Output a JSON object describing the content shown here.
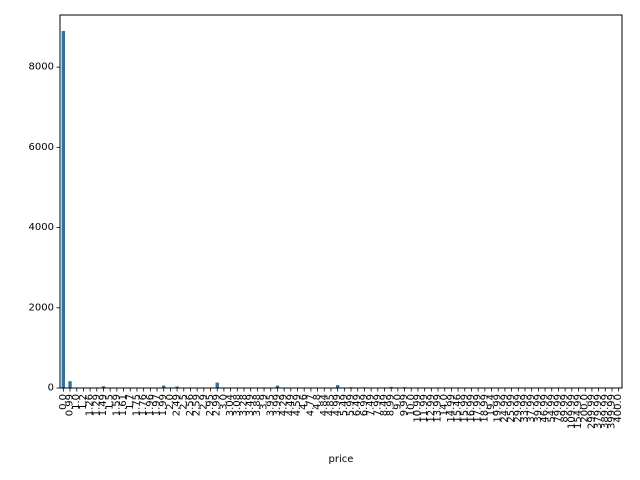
{
  "chart_data": {
    "type": "bar",
    "xlabel": "price",
    "ylabel": "",
    "title": "",
    "ylim": [
      0,
      9300
    ],
    "yticks": [
      0,
      2000,
      4000,
      6000,
      8000
    ],
    "grid": false,
    "bar_color": "#1f77b4",
    "categories": [
      "0.0",
      "0.99",
      "1.0",
      "1.2",
      "1.26",
      "1.29",
      "1.49",
      "1.5",
      "1.59",
      "1.61",
      "1.7",
      "1.75",
      "1.76",
      "1.96",
      "1.97",
      "1.99",
      "2.0",
      "2.49",
      "2.5",
      "2.56",
      "2.59",
      "2.9",
      "2.95",
      "2.99",
      "3.0",
      "3.04",
      "3.08",
      "3.28",
      "3.49",
      "3.88",
      "3.9",
      "3.95",
      "3.99",
      "4.29",
      "4.49",
      "4.59",
      "4.6",
      "4.77",
      "4.8",
      "4.84",
      "4.85",
      "4.99",
      "5.49",
      "5.99",
      "6.49",
      "6.99",
      "7.49",
      "7.99",
      "8.49",
      "8.99",
      "9.0",
      "9.99",
      "10.0",
      "10.99",
      "11.99",
      "12.99",
      "13.99",
      "14.0",
      "14.99",
      "15.46",
      "15.99",
      "16.99",
      "17.99",
      "18.99",
      "19.4",
      "19.99",
      "24.99",
      "25.99",
      "29.99",
      "33.99",
      "37.99",
      "39.99",
      "46.99",
      "54.99",
      "79.99",
      "89.99",
      "109.99",
      "154.99",
      "200.0",
      "299.99",
      "379.99",
      "389.99",
      "399.99",
      "400.0"
    ],
    "values": [
      8900,
      170,
      2,
      2,
      2,
      2,
      45,
      2,
      8,
      2,
      2,
      2,
      2,
      2,
      2,
      60,
      10,
      38,
      10,
      2,
      2,
      2,
      2,
      135,
      12,
      2,
      2,
      2,
      2,
      2,
      2,
      2,
      60,
      2,
      8,
      2,
      2,
      2,
      2,
      2,
      2,
      72,
      10,
      20,
      4,
      15,
      3,
      6,
      2,
      28,
      2,
      20,
      3,
      3,
      2,
      3,
      2,
      2,
      4,
      2,
      3,
      2,
      2,
      2,
      2,
      3,
      3,
      2,
      3,
      2,
      2,
      2,
      2,
      2,
      2,
      2,
      2,
      2,
      2,
      2,
      2,
      2,
      2,
      2
    ]
  }
}
